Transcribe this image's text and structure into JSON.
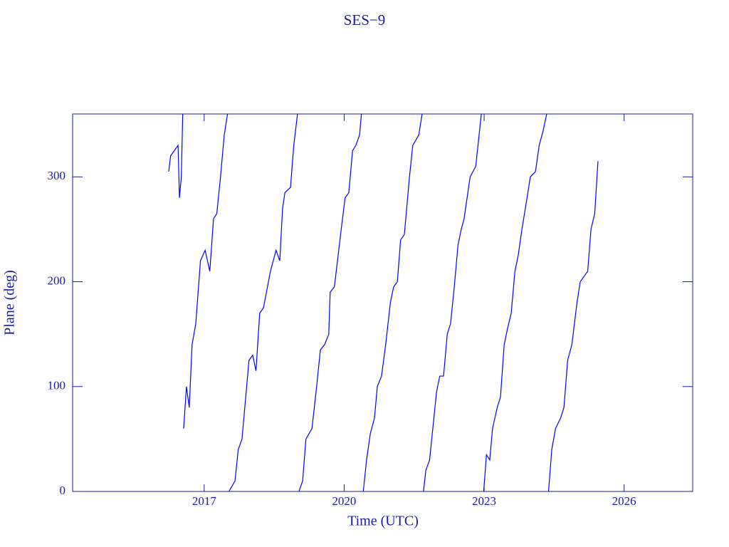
{
  "chart_data": {
    "type": "line",
    "title": "SES−9",
    "x_label": "Time (UTC)",
    "y_label": "Plane (deg)",
    "color": "#0000ff",
    "x": [
      2016.24,
      2016.28,
      2016.36,
      2016.44,
      2016.47,
      2016.51,
      2016.54,
      null,
      2016.56,
      2016.62,
      2016.68,
      2016.74,
      2016.82,
      2016.92,
      2017.02,
      2017.12,
      2017.2,
      2017.27,
      2017.35,
      2017.43,
      2017.5,
      null,
      2017.53,
      2017.66,
      2017.73,
      2017.81,
      2017.89,
      2017.96,
      2018.04,
      2018.11,
      2018.19,
      2018.27,
      2018.42,
      2018.54,
      2018.62,
      2018.68,
      2018.73,
      2018.85,
      2018.92,
      2019.0,
      null,
      2019.03,
      2019.11,
      2019.18,
      2019.31,
      2019.41,
      2019.49,
      2019.58,
      2019.67,
      2019.7,
      2019.79,
      2019.95,
      2020.02,
      2020.1,
      2020.18,
      2020.25,
      2020.33,
      2020.37,
      null,
      2020.41,
      2020.48,
      2020.56,
      2020.65,
      2020.71,
      2020.8,
      2020.89,
      2020.99,
      2021.06,
      2021.14,
      2021.21,
      2021.29,
      2021.4,
      2021.47,
      2021.6,
      2021.67,
      null,
      2021.7,
      2021.75,
      2021.83,
      2021.9,
      2021.98,
      2022.05,
      2022.13,
      2022.21,
      2022.28,
      2022.36,
      2022.44,
      2022.51,
      2022.57,
      2022.7,
      2022.82,
      2022.94,
      null,
      2022.99,
      2023.05,
      2023.12,
      2023.18,
      2023.28,
      2023.35,
      2023.43,
      2023.5,
      2023.58,
      2023.66,
      2023.73,
      2023.81,
      2023.92,
      2023.99,
      2024.1,
      2024.18,
      2024.27,
      2024.34,
      null,
      2024.38,
      2024.45,
      2024.53,
      2024.64,
      2024.71,
      2024.79,
      2024.88,
      2024.99,
      2025.06,
      2025.14,
      2025.22,
      2025.29,
      2025.37,
      2025.44
    ],
    "values": [
      305,
      320,
      325,
      330,
      280,
      300,
      360,
      null,
      60,
      100,
      80,
      140,
      160,
      220,
      230,
      210,
      260,
      265,
      300,
      340,
      360,
      null,
      0,
      10,
      40,
      50,
      90,
      125,
      130,
      115,
      170,
      175,
      210,
      230,
      220,
      270,
      285,
      290,
      330,
      360,
      null,
      0,
      10,
      50,
      60,
      100,
      135,
      140,
      150,
      190,
      195,
      255,
      280,
      285,
      325,
      330,
      340,
      360,
      null,
      0,
      30,
      55,
      70,
      100,
      110,
      140,
      180,
      195,
      200,
      240,
      245,
      300,
      330,
      340,
      360,
      null,
      0,
      20,
      30,
      60,
      95,
      110,
      110,
      150,
      160,
      195,
      235,
      250,
      260,
      300,
      310,
      360,
      null,
      0,
      35,
      30,
      60,
      80,
      90,
      140,
      155,
      170,
      210,
      225,
      250,
      280,
      300,
      305,
      330,
      345,
      360,
      null,
      0,
      40,
      60,
      70,
      80,
      125,
      140,
      180,
      200,
      205,
      210,
      250,
      265,
      315
    ],
    "xlim": [
      2014.18,
      2027.47
    ],
    "ylim": [
      0,
      360
    ],
    "xticks": [
      2017,
      2020,
      2023,
      2026
    ],
    "yticks": [
      0,
      100,
      200,
      300
    ]
  }
}
